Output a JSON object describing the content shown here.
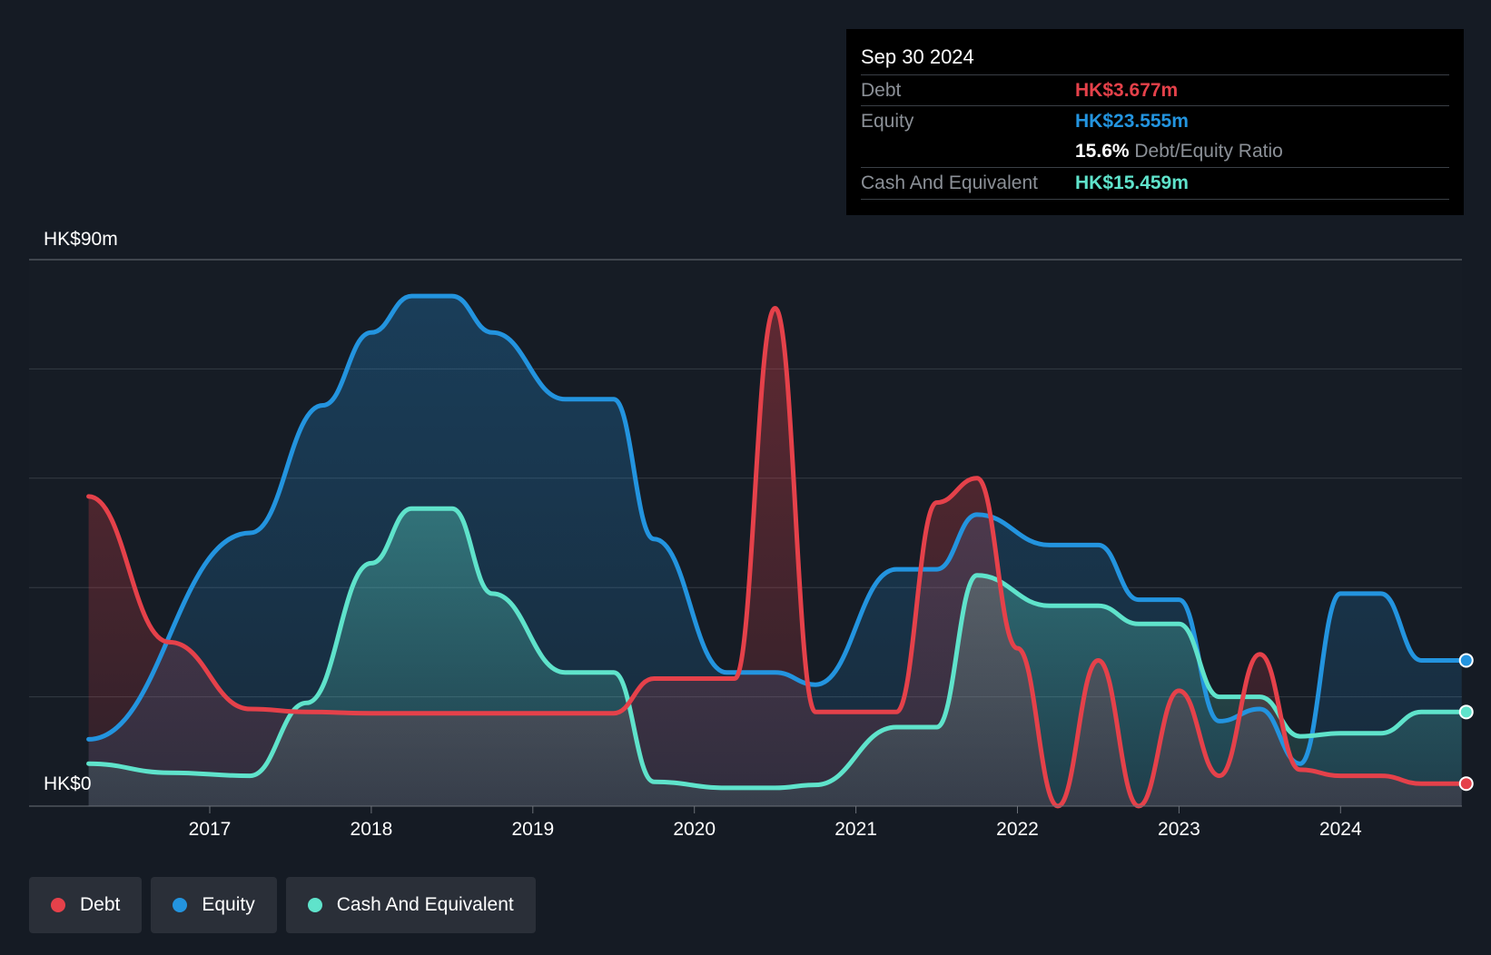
{
  "tooltip": {
    "date": "Sep 30 2024",
    "rows": [
      {
        "label": "Debt",
        "value": "HK$3.677m",
        "color": "#e5414a"
      },
      {
        "label": "Equity",
        "value": "HK$23.555m",
        "color": "#2394df"
      },
      {
        "label": "",
        "value": "15.6%",
        "suffix": "Debt/Equity Ratio"
      },
      {
        "label": "Cash And Equivalent",
        "value": "HK$15.459m",
        "color": "#5fe3cb"
      }
    ]
  },
  "legend": [
    {
      "label": "Debt",
      "color": "#e5414a"
    },
    {
      "label": "Equity",
      "color": "#2394df"
    },
    {
      "label": "Cash And Equivalent",
      "color": "#5fe3cb"
    }
  ],
  "chart_data": {
    "type": "area",
    "ylabel_top": "HK$90m",
    "ylabel_bottom": "HK$0",
    "ylim": [
      0,
      90
    ],
    "xlim": [
      2016.24,
      2024.8
    ],
    "x_ticks": [
      2017,
      2018,
      2019,
      2020,
      2021,
      2022,
      2023,
      2024
    ],
    "x_tick_labels": [
      "2017",
      "2018",
      "2019",
      "2020",
      "2021",
      "2022",
      "2023",
      "2024"
    ],
    "grid": true,
    "legend_position": "bottom-left",
    "series": [
      {
        "name": "Equity",
        "color": "#2394df",
        "points": [
          [
            2016.25,
            11
          ],
          [
            2017.25,
            45
          ],
          [
            2017.7,
            66
          ],
          [
            2018.0,
            78
          ],
          [
            2018.25,
            84
          ],
          [
            2018.5,
            84
          ],
          [
            2018.75,
            78
          ],
          [
            2019.2,
            67
          ],
          [
            2019.5,
            67
          ],
          [
            2019.75,
            44
          ],
          [
            2020.2,
            22
          ],
          [
            2020.5,
            22
          ],
          [
            2020.75,
            20
          ],
          [
            2021.25,
            39
          ],
          [
            2021.5,
            39
          ],
          [
            2021.75,
            48
          ],
          [
            2022.2,
            43
          ],
          [
            2022.5,
            43
          ],
          [
            2022.75,
            34
          ],
          [
            2023.0,
            34
          ],
          [
            2023.25,
            14
          ],
          [
            2023.5,
            16
          ],
          [
            2023.75,
            7
          ],
          [
            2024.0,
            35
          ],
          [
            2024.25,
            35
          ],
          [
            2024.5,
            24
          ],
          [
            2024.75,
            24
          ]
        ]
      },
      {
        "name": "Cash And Equivalent",
        "color": "#5fe3cb",
        "points": [
          [
            2016.25,
            7
          ],
          [
            2016.75,
            5.5
          ],
          [
            2017.25,
            5
          ],
          [
            2017.6,
            17
          ],
          [
            2018.0,
            40
          ],
          [
            2018.25,
            49
          ],
          [
            2018.5,
            49
          ],
          [
            2018.75,
            35
          ],
          [
            2019.2,
            22
          ],
          [
            2019.5,
            22
          ],
          [
            2019.75,
            4
          ],
          [
            2020.2,
            3
          ],
          [
            2020.5,
            3
          ],
          [
            2020.75,
            3.5
          ],
          [
            2021.25,
            13
          ],
          [
            2021.5,
            13
          ],
          [
            2021.75,
            38
          ],
          [
            2022.2,
            33
          ],
          [
            2022.5,
            33
          ],
          [
            2022.75,
            30
          ],
          [
            2023.0,
            30
          ],
          [
            2023.25,
            18
          ],
          [
            2023.5,
            18
          ],
          [
            2023.75,
            11.5
          ],
          [
            2024.0,
            12
          ],
          [
            2024.25,
            12
          ],
          [
            2024.5,
            15.5
          ],
          [
            2024.75,
            15.5
          ]
        ]
      },
      {
        "name": "Debt",
        "color": "#e5414a",
        "points": [
          [
            2016.25,
            51
          ],
          [
            2016.75,
            27
          ],
          [
            2017.25,
            16
          ],
          [
            2017.6,
            15.5
          ],
          [
            2018.0,
            15.3
          ],
          [
            2018.5,
            15.3
          ],
          [
            2019.0,
            15.3
          ],
          [
            2019.5,
            15.3
          ],
          [
            2019.75,
            21
          ],
          [
            2020.25,
            21
          ],
          [
            2020.5,
            82
          ],
          [
            2020.75,
            15.5
          ],
          [
            2021.25,
            15.5
          ],
          [
            2021.5,
            50
          ],
          [
            2021.75,
            54
          ],
          [
            2022.0,
            26
          ],
          [
            2022.25,
            0
          ],
          [
            2022.5,
            24
          ],
          [
            2022.75,
            0
          ],
          [
            2023.0,
            19
          ],
          [
            2023.25,
            5
          ],
          [
            2023.5,
            25
          ],
          [
            2023.75,
            6
          ],
          [
            2024.0,
            5
          ],
          [
            2024.25,
            5
          ],
          [
            2024.5,
            3.7
          ],
          [
            2024.75,
            3.7
          ]
        ]
      }
    ]
  }
}
